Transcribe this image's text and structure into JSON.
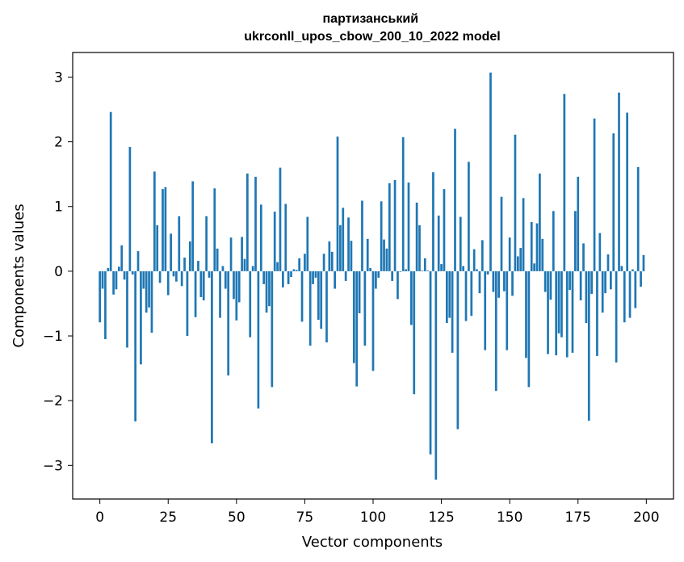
{
  "chart_data": {
    "type": "bar",
    "title": "партизанський\nukrconll_upos_cbow_200_10_2022 model",
    "xlabel": "Vector components",
    "ylabel": "Components values",
    "xlim": [
      -9.95,
      209.95
    ],
    "ylim": [
      -3.52,
      3.38
    ],
    "xticks": [
      0,
      25,
      50,
      75,
      100,
      125,
      150,
      175,
      200
    ],
    "yticks": [
      -3,
      -2,
      -1,
      0,
      1,
      2,
      3
    ],
    "ytick_labels": [
      "−3",
      "−2",
      "−1",
      "0",
      "1",
      "2",
      "3"
    ],
    "grid": false,
    "legend": "none",
    "bar_color": "#1f77b4",
    "x": [
      0,
      1,
      2,
      3,
      4,
      5,
      6,
      7,
      8,
      9,
      10,
      11,
      12,
      13,
      14,
      15,
      16,
      17,
      18,
      19,
      20,
      21,
      22,
      23,
      24,
      25,
      26,
      27,
      28,
      29,
      30,
      31,
      32,
      33,
      34,
      35,
      36,
      37,
      38,
      39,
      40,
      41,
      42,
      43,
      44,
      45,
      46,
      47,
      48,
      49,
      50,
      51,
      52,
      53,
      54,
      55,
      56,
      57,
      58,
      59,
      60,
      61,
      62,
      63,
      64,
      65,
      66,
      67,
      68,
      69,
      70,
      71,
      72,
      73,
      74,
      75,
      76,
      77,
      78,
      79,
      80,
      81,
      82,
      83,
      84,
      85,
      86,
      87,
      88,
      89,
      90,
      91,
      92,
      93,
      94,
      95,
      96,
      97,
      98,
      99,
      100,
      101,
      102,
      103,
      104,
      105,
      106,
      107,
      108,
      109,
      110,
      111,
      112,
      113,
      114,
      115,
      116,
      117,
      118,
      119,
      120,
      121,
      122,
      123,
      124,
      125,
      126,
      127,
      128,
      129,
      130,
      131,
      132,
      133,
      134,
      135,
      136,
      137,
      138,
      139,
      140,
      141,
      142,
      143,
      144,
      145,
      146,
      147,
      148,
      149,
      150,
      151,
      152,
      153,
      154,
      155,
      156,
      157,
      158,
      159,
      160,
      161,
      162,
      163,
      164,
      165,
      166,
      167,
      168,
      169,
      170,
      171,
      172,
      173,
      174,
      175,
      176,
      177,
      178,
      179,
      180,
      181,
      182,
      183,
      184,
      185,
      186,
      187,
      188,
      189,
      190,
      191,
      192,
      193,
      194,
      195,
      196,
      197,
      198,
      199
    ],
    "values": [
      -0.79,
      -0.27,
      -1.05,
      0.05,
      2.46,
      -0.36,
      -0.28,
      0.07,
      0.4,
      -0.13,
      -1.18,
      1.92,
      -0.05,
      -2.32,
      0.31,
      -1.44,
      -0.27,
      -0.64,
      -0.56,
      -0.95,
      1.54,
      0.71,
      -0.18,
      1.27,
      1.3,
      -0.37,
      0.58,
      -0.08,
      -0.16,
      0.85,
      -0.23,
      0.21,
      -1.0,
      0.46,
      1.39,
      -0.71,
      0.16,
      -0.4,
      -0.45,
      0.85,
      -0.1,
      -2.66,
      1.28,
      0.35,
      -0.72,
      0.08,
      -0.27,
      -1.61,
      0.52,
      -0.43,
      -0.76,
      -0.48,
      0.53,
      0.19,
      1.51,
      -1.02,
      0.08,
      1.46,
      -2.12,
      1.03,
      -0.2,
      -0.64,
      -0.54,
      -1.79,
      0.92,
      0.14,
      1.6,
      -0.25,
      1.04,
      -0.2,
      -0.09,
      0.03,
      0.02,
      0.2,
      -0.78,
      0.27,
      0.84,
      -1.15,
      -0.2,
      -0.1,
      -0.75,
      -0.89,
      0.27,
      -1.1,
      0.46,
      0.3,
      -0.27,
      2.08,
      0.71,
      0.98,
      -0.15,
      0.83,
      0.47,
      -1.42,
      -1.78,
      -0.65,
      1.09,
      -1.15,
      0.5,
      0.05,
      -1.54,
      -0.27,
      -0.1,
      1.08,
      0.49,
      0.35,
      1.36,
      -0.15,
      1.41,
      -0.43,
      -0.01,
      2.07,
      0.03,
      1.37,
      -0.83,
      -1.9,
      1.06,
      0.71,
      0.01,
      0.2,
      0.01,
      -2.83,
      1.53,
      -3.22,
      0.86,
      0.11,
      1.27,
      -0.8,
      -0.72,
      -1.26,
      2.2,
      -2.44,
      0.84,
      0.08,
      -0.77,
      1.69,
      -0.69,
      0.34,
      0.03,
      -0.34,
      0.48,
      -1.22,
      -0.05,
      3.07,
      -0.32,
      -1.85,
      -0.41,
      1.15,
      -0.31,
      -1.22,
      0.52,
      -0.38,
      2.11,
      0.23,
      0.36,
      1.13,
      -1.34,
      -1.79,
      0.76,
      0.12,
      0.74,
      1.51,
      0.5,
      -0.32,
      -1.28,
      -0.44,
      0.93,
      -1.3,
      -0.96,
      -1.02,
      2.74,
      -1.33,
      -0.29,
      -1.26,
      0.93,
      1.46,
      -0.45,
      0.43,
      -0.8,
      -2.31,
      -0.35,
      2.36,
      -1.31,
      0.59,
      -0.64,
      -0.34,
      0.26,
      -0.28,
      2.13,
      -1.41,
      2.76,
      0.08,
      -0.79,
      2.45,
      -0.72,
      0.03,
      -0.57,
      1.61,
      -0.24,
      0.25
    ]
  }
}
